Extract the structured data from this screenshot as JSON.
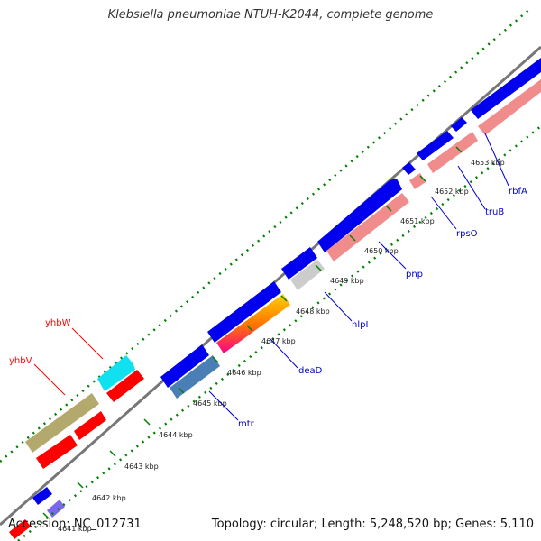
{
  "title": "Klebsiella pneumoniae NTUH-K2044, complete genome",
  "accession": "Accession: NC_012731",
  "topology": "Topology: circular; Length: 5,248,520 bp; Genes: 5,110",
  "ticks": [
    "4641 kbp",
    "4642 kbp",
    "4643 kbp",
    "4644 kbp",
    "4645 kbp",
    "4646 kbp",
    "4647 kbp",
    "4648 kbp",
    "4649 kbp",
    "4650 kbp",
    "4651 kbp",
    "4652 kbp",
    "4653 kbp"
  ],
  "genes": [
    {
      "name": "yhbV",
      "color": "#ff0000"
    },
    {
      "name": "yhbW",
      "color": "#ff0000"
    },
    {
      "name": "mtr",
      "color": "#0000cc"
    },
    {
      "name": "deaD",
      "color": "#0000cc"
    },
    {
      "name": "nlpI",
      "color": "#0000cc"
    },
    {
      "name": "pnp",
      "color": "#0000cc"
    },
    {
      "name": "rpsO",
      "color": "#0000cc"
    },
    {
      "name": "truB",
      "color": "#0000cc"
    },
    {
      "name": "rbfA",
      "color": "#0000cc"
    }
  ],
  "colors": {
    "forward": "#0000ee",
    "cog_pink": "#f08c8c",
    "cog_steel": "#4a7fb5",
    "cog_cyan": "#11e0ee",
    "cog_olive": "#b3a96c",
    "cog_red": "#ff0000",
    "cog_lavender": "#7b68ee",
    "cog_grey": "#cccccc",
    "backbone": "#888888",
    "dots": "#007f00"
  }
}
